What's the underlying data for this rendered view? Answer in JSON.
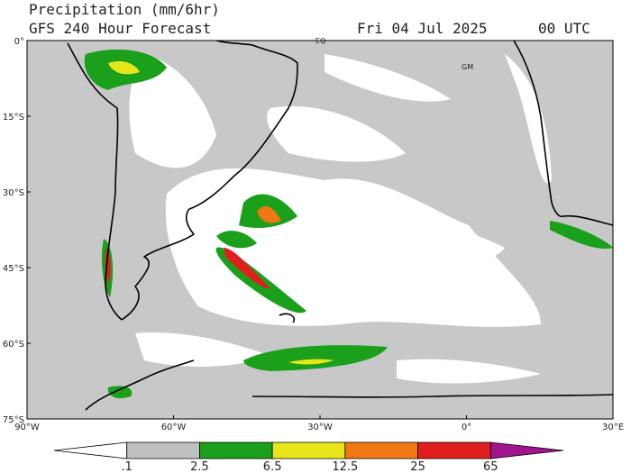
{
  "header": {
    "title": "Precipitation (mm/6hr)",
    "subtitle": "GFS 240 Hour Forecast",
    "date": "Fri 04 Jul 2025",
    "time": "00 UTC"
  },
  "map": {
    "lat_labels": [
      "0°",
      "15°S",
      "30°S",
      "45°S",
      "60°S",
      "75°S"
    ],
    "lon_labels": [
      "90°W",
      "60°W",
      "30°W",
      "0°",
      "30°E"
    ],
    "annotations": [
      "EQ",
      "GM"
    ]
  },
  "legend": {
    "colors": [
      "#ffffff",
      "#c0c0c0",
      "#1aa01a",
      "#e6e61a",
      "#f07814",
      "#e11e1e",
      "#a0148c"
    ],
    "labels": [
      ".1",
      "2.5",
      "6.5",
      "12.5",
      "25",
      "65"
    ]
  }
}
